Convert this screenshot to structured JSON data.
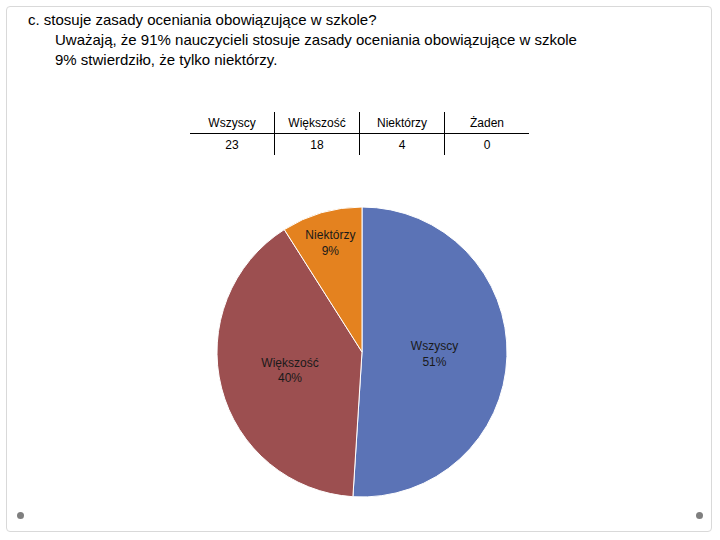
{
  "heading": {
    "lines": [
      "c.  stosuje zasady oceniania obowiązujące w szkole?",
      "Uważają, że 91% nauczycieli stosuje zasady oceniania obowiązujące w szkole",
      "9% stwierdziło, że tylko niektórzy."
    ]
  },
  "table": {
    "header": [
      "Wszyscy",
      "Większość",
      "Niektórzy",
      "Żaden"
    ],
    "rows": [
      [
        23,
        18,
        4,
        0
      ]
    ]
  },
  "chart_data": {
    "type": "pie",
    "categories": [
      "Wszyscy",
      "Większość",
      "Niektórzy"
    ],
    "values": [
      51,
      40,
      9
    ],
    "value_labels": [
      "51%",
      "40%",
      "9%"
    ],
    "data_labels": true,
    "colors": [
      "#5b73b6",
      "#9c4f50",
      "#e4821f"
    ]
  }
}
